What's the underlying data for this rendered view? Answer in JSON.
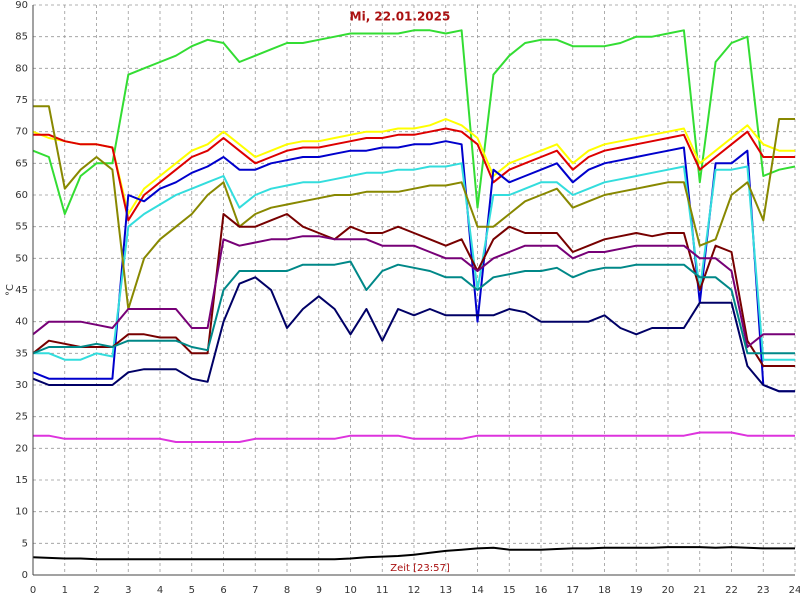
{
  "chart_data": {
    "type": "line",
    "title": "Mi, 22.01.2025",
    "x_label": "Zeit [23:57]",
    "y_label": "°C",
    "grid": true,
    "x": [
      0,
      0.5,
      1,
      1.5,
      2,
      2.5,
      3,
      3.5,
      4,
      4.5,
      5,
      5.5,
      6,
      6.5,
      7,
      7.5,
      8,
      8.5,
      9,
      9.5,
      10,
      10.5,
      11,
      11.5,
      12,
      12.5,
      13,
      13.5,
      14,
      14.5,
      15,
      15.5,
      16,
      16.5,
      17,
      17.5,
      18,
      18.5,
      19,
      19.5,
      20,
      20.5,
      21,
      21.5,
      22,
      22.5,
      23,
      23.5,
      24
    ],
    "xlim": [
      0,
      24
    ],
    "xticks": [
      0,
      1,
      2,
      3,
      4,
      5,
      6,
      7,
      8,
      9,
      10,
      11,
      12,
      13,
      14,
      15,
      16,
      17,
      18,
      19,
      20,
      21,
      22,
      23,
      24
    ],
    "ylim": [
      0,
      90
    ],
    "yticks": [
      0,
      5,
      10,
      15,
      20,
      25,
      30,
      35,
      40,
      45,
      50,
      55,
      60,
      65,
      70,
      75,
      80,
      85,
      90
    ],
    "series": [
      {
        "color": "#33dd33",
        "values": [
          67,
          66,
          57,
          63,
          65,
          65,
          79,
          80,
          81,
          82,
          83.5,
          84.5,
          84,
          81,
          82,
          83,
          84,
          84,
          84.5,
          85,
          85.5,
          85.5,
          85.5,
          85.5,
          86,
          86,
          85.5,
          86,
          58,
          79,
          82,
          84,
          84.5,
          84.5,
          83.5,
          83.5,
          83.5,
          84,
          85,
          85,
          85.5,
          86,
          62,
          81,
          84,
          85,
          63,
          64,
          64.5
        ]
      },
      {
        "color": "#ffff00",
        "values": [
          70,
          69,
          68.5,
          68,
          68,
          67.5,
          57,
          61,
          63,
          65,
          67,
          68,
          70,
          68,
          66,
          67,
          68,
          68.5,
          68.5,
          69,
          69.5,
          70,
          70,
          70.5,
          70.5,
          71,
          72,
          71,
          69,
          63,
          65,
          66,
          67,
          68,
          65,
          67,
          68,
          68.5,
          69,
          69.5,
          70,
          70.5,
          65,
          67,
          69,
          71,
          68,
          67,
          67
        ]
      },
      {
        "color": "#dd0000",
        "values": [
          69.5,
          69.5,
          68.5,
          68,
          68,
          67.5,
          56,
          60,
          62,
          64,
          66,
          67,
          69,
          67,
          65,
          66,
          67,
          67.5,
          67.5,
          68,
          68.5,
          69,
          69,
          69.5,
          69.5,
          70,
          70.5,
          70,
          68,
          62,
          64,
          65,
          66,
          67,
          64,
          66,
          67,
          67.5,
          68,
          68.5,
          69,
          69.5,
          64,
          66,
          68,
          70,
          66,
          66,
          66
        ]
      },
      {
        "color": "#0000cc",
        "values": [
          32,
          31,
          31,
          31,
          31,
          31,
          60,
          59,
          61,
          62,
          63.5,
          64.5,
          66,
          64,
          64,
          65,
          65.5,
          66,
          66,
          66.5,
          67,
          67,
          67.5,
          67.5,
          68,
          68,
          68.5,
          68,
          40,
          64,
          62,
          63,
          64,
          65,
          62,
          64,
          65,
          65.5,
          66,
          66.5,
          67,
          67.5,
          43,
          65,
          65,
          67,
          30,
          29,
          29
        ]
      },
      {
        "color": "#33dddd",
        "values": [
          35,
          35,
          34,
          34,
          35,
          34.5,
          55,
          57,
          58.5,
          60,
          61,
          62,
          63,
          58,
          60,
          61,
          61.5,
          62,
          62,
          62.5,
          63,
          63.5,
          63.5,
          64,
          64,
          64.5,
          64.5,
          65,
          45,
          60,
          60,
          61,
          62,
          62,
          60,
          61,
          62,
          62.5,
          63,
          63.5,
          64,
          64.5,
          45,
          64,
          64,
          64.5,
          34,
          34,
          34
        ]
      },
      {
        "color": "#888800",
        "values": [
          74,
          74,
          61,
          64,
          66,
          64,
          42,
          50,
          53,
          55,
          57,
          60,
          62,
          55,
          57,
          58,
          58.5,
          59,
          59.5,
          60,
          60,
          60.5,
          60.5,
          60.5,
          61,
          61.5,
          61.5,
          62,
          55,
          55,
          57,
          59,
          60,
          61,
          58,
          59,
          60,
          60.5,
          61,
          61.5,
          62,
          62,
          52,
          53,
          60,
          62,
          56,
          72,
          72
        ]
      },
      {
        "color": "#770000",
        "values": [
          35,
          37,
          36.5,
          36,
          36,
          36,
          38,
          38,
          37.5,
          37.5,
          35,
          35,
          57,
          55,
          55,
          56,
          57,
          55,
          54,
          53,
          55,
          54,
          54,
          55,
          54,
          53,
          52,
          53,
          48,
          53,
          55,
          54,
          54,
          54,
          51,
          52,
          53,
          53.5,
          54,
          53.5,
          54,
          54,
          45,
          52,
          51,
          37,
          33,
          33,
          33
        ]
      },
      {
        "color": "#770077",
        "values": [
          38,
          40,
          40,
          40,
          39.5,
          39,
          42,
          42,
          42,
          42,
          39,
          39,
          53,
          52,
          52.5,
          53,
          53,
          53.5,
          53.5,
          53,
          53,
          53,
          52,
          52,
          52,
          51,
          50,
          50,
          48,
          50,
          51,
          52,
          52,
          52,
          50,
          51,
          51,
          51.5,
          52,
          52,
          52,
          52,
          50,
          50,
          48,
          36,
          38,
          38,
          38
        ]
      },
      {
        "color": "#008888",
        "values": [
          35,
          36,
          36,
          36,
          36.5,
          36,
          37,
          37,
          37,
          37,
          36,
          35.5,
          45,
          48,
          48,
          48,
          48,
          49,
          49,
          49,
          49.5,
          45,
          48,
          49,
          48.5,
          48,
          47,
          47,
          45,
          47,
          47.5,
          48,
          48,
          48.5,
          47,
          48,
          48.5,
          48.5,
          49,
          49,
          49,
          49,
          47,
          47,
          45,
          35,
          35,
          35,
          35
        ]
      },
      {
        "color": "#000066",
        "values": [
          31,
          30,
          30,
          30,
          30,
          30,
          32,
          32.5,
          32.5,
          32.5,
          31,
          30.5,
          40,
          46,
          47,
          45,
          39,
          42,
          44,
          42,
          38,
          42,
          37,
          42,
          41,
          42,
          41,
          41,
          41,
          41,
          42,
          41.5,
          40,
          40,
          40,
          40,
          41,
          39,
          38,
          39,
          39,
          39,
          43,
          43,
          43,
          33,
          30,
          29,
          29
        ]
      },
      {
        "color": "#dd33dd",
        "values": [
          22,
          22,
          21.5,
          21.5,
          21.5,
          21.5,
          21.5,
          21.5,
          21.5,
          21,
          21,
          21,
          21,
          21,
          21.5,
          21.5,
          21.5,
          21.5,
          21.5,
          21.5,
          22,
          22,
          22,
          22,
          21.5,
          21.5,
          21.5,
          21.5,
          22,
          22,
          22,
          22,
          22,
          22,
          22,
          22,
          22,
          22,
          22,
          22,
          22,
          22,
          22.5,
          22.5,
          22.5,
          22,
          22,
          22,
          22
        ]
      },
      {
        "color": "#000000",
        "values": [
          2.8,
          2.7,
          2.6,
          2.6,
          2.5,
          2.5,
          2.5,
          2.5,
          2.5,
          2.5,
          2.5,
          2.5,
          2.5,
          2.5,
          2.5,
          2.5,
          2.5,
          2.5,
          2.5,
          2.5,
          2.6,
          2.8,
          2.9,
          3,
          3.2,
          3.5,
          3.8,
          4,
          4.2,
          4.3,
          4,
          4,
          4,
          4.1,
          4.2,
          4.2,
          4.3,
          4.3,
          4.3,
          4.3,
          4.4,
          4.4,
          4.4,
          4.3,
          4.4,
          4.3,
          4.2,
          4.2,
          4.2
        ]
      }
    ]
  }
}
